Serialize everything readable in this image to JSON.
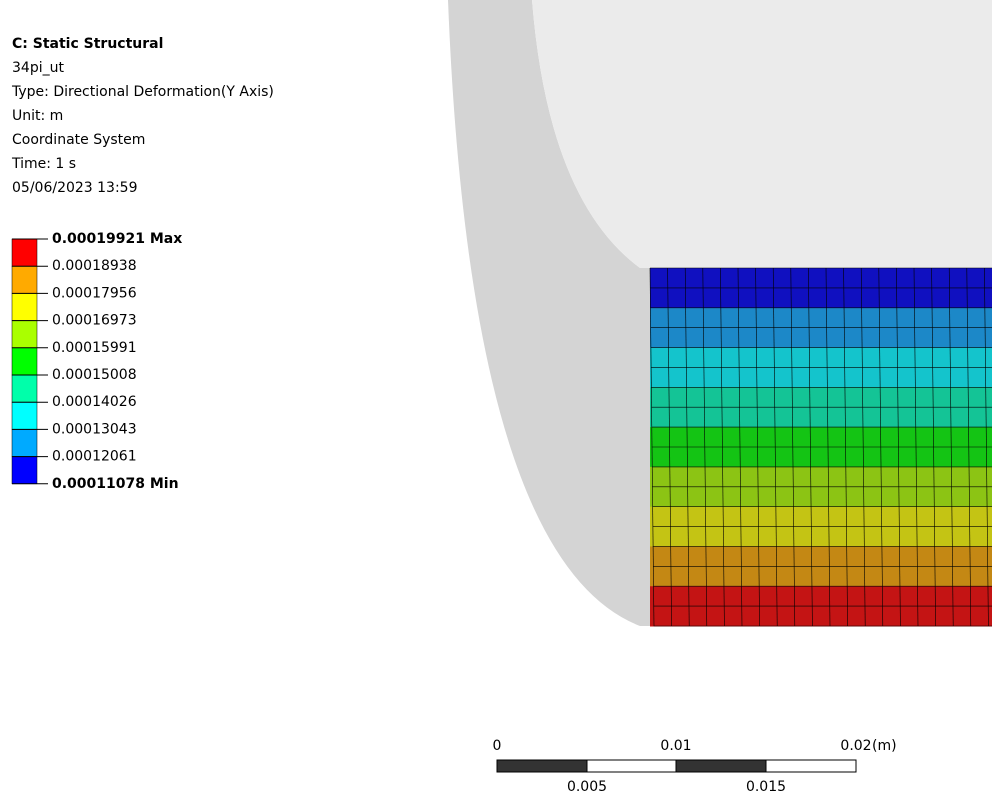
{
  "header": {
    "title": "C: Static Structural",
    "lines": [
      "34pi_ut",
      "Type: Directional Deformation(Y Axis)",
      "Unit: m",
      "Coordinate System",
      "Time: 1 s",
      "05/06/2023 13:59"
    ]
  },
  "legend": [
    {
      "label": "0.00019921 Max",
      "color": "#ff0000"
    },
    {
      "label": "0.00018938",
      "color": "#ffaa00"
    },
    {
      "label": "0.00017956",
      "color": "#ffff00"
    },
    {
      "label": "0.00016973",
      "color": "#aaff00"
    },
    {
      "label": "0.00015991",
      "color": "#00ff00"
    },
    {
      "label": "0.00015008",
      "color": "#00ffaa"
    },
    {
      "label": "0.00014026",
      "color": "#00ffff"
    },
    {
      "label": "0.00013043",
      "color": "#00aaff"
    },
    {
      "label": "0.00012061",
      "color": "#0000ff"
    },
    {
      "label": "0.00011078 Min"
    }
  ],
  "scale_bar": {
    "top_labels": [
      "0",
      "0.01",
      "0.02"
    ],
    "unit": "(m)",
    "bottom_labels": [
      "0.005",
      "0.015"
    ]
  }
}
